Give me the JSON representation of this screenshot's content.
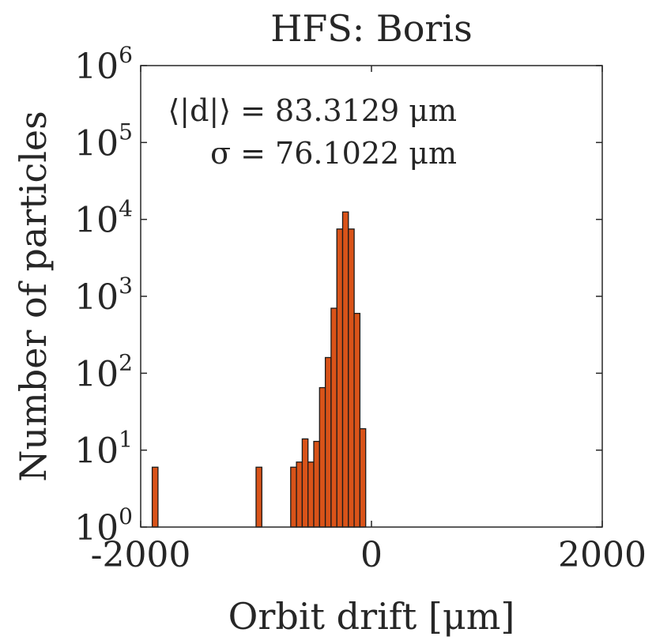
{
  "chart_data": {
    "type": "bar",
    "title": "HFS: Boris",
    "xlabel": "Orbit drift [μm]",
    "ylabel": "Number of particles",
    "xlim": [
      -2000,
      2000
    ],
    "ylim": [
      1,
      1000000
    ],
    "yscale": "log",
    "x_ticks": [
      "-2000",
      "0",
      "2000"
    ],
    "y_ticks": [
      {
        "base": "10",
        "exp": "0",
        "value": 1
      },
      {
        "base": "10",
        "exp": "1",
        "value": 10
      },
      {
        "base": "10",
        "exp": "2",
        "value": 100
      },
      {
        "base": "10",
        "exp": "3",
        "value": 1000
      },
      {
        "base": "10",
        "exp": "4",
        "value": 10000
      },
      {
        "base": "10",
        "exp": "5",
        "value": 100000
      },
      {
        "base": "10",
        "exp": "6",
        "value": 1000000
      }
    ],
    "bin_width": 50,
    "bins": [
      {
        "x": -1875,
        "count": 6
      },
      {
        "x": -975,
        "count": 6
      },
      {
        "x": -675,
        "count": 6
      },
      {
        "x": -625,
        "count": 7
      },
      {
        "x": -575,
        "count": 14
      },
      {
        "x": -525,
        "count": 7
      },
      {
        "x": -475,
        "count": 13
      },
      {
        "x": -425,
        "count": 65
      },
      {
        "x": -375,
        "count": 160
      },
      {
        "x": -325,
        "count": 700
      },
      {
        "x": -275,
        "count": 7500
      },
      {
        "x": -225,
        "count": 12500
      },
      {
        "x": -175,
        "count": 7500
      },
      {
        "x": -125,
        "count": 600
      },
      {
        "x": -75,
        "count": 19
      }
    ],
    "bar_color": "#d95319",
    "edge_color": "#1a1a1a",
    "grid": false,
    "annotations": {
      "mean_label": "⟨|d|⟩ = 83.3129 μm",
      "sigma_label": "σ = 76.1022 μm"
    }
  }
}
